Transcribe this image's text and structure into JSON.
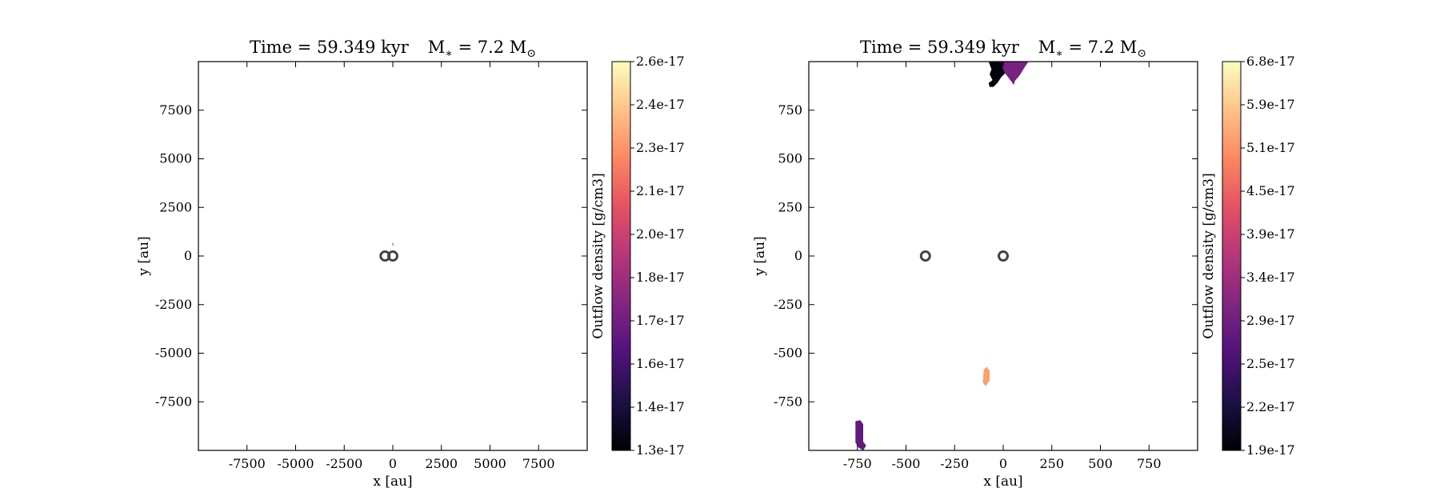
{
  "colormap": {
    "name": "magma",
    "stops": [
      "#000004",
      "#1c1044",
      "#4f127b",
      "#812581",
      "#b5367a",
      "#e55064",
      "#fb8761",
      "#fec287",
      "#fcfdbf"
    ]
  },
  "chart_data": [
    {
      "type": "heatmap",
      "title_time": "Time = 59.349 kyr",
      "title_mass_symbol": "M",
      "title_mass_sub": "∗",
      "title_mass_value": " = 7.2 M",
      "title_mass_unit_sub": "⊙",
      "xlabel": "x [au]",
      "ylabel": "y [au]",
      "xlim": [
        -10000,
        10000
      ],
      "ylim": [
        -10000,
        10000
      ],
      "xticks": [
        -7500,
        -5000,
        -2500,
        0,
        2500,
        5000,
        7500
      ],
      "yticks": [
        -7500,
        -5000,
        -2500,
        0,
        2500,
        5000,
        7500
      ],
      "colorbar": {
        "label": "Outflow density [g/cm3]",
        "ticks": [
          "1.3e-17",
          "1.4e-17",
          "1.6e-17",
          "1.7e-17",
          "1.8e-17",
          "2.0e-17",
          "2.1e-17",
          "2.3e-17",
          "2.4e-17",
          "2.6e-17"
        ]
      },
      "sinks": [
        {
          "x": -400,
          "y": 0
        },
        {
          "x": 0,
          "y": 0
        }
      ],
      "outflow_regions": [
        {
          "points": [
            [
              -40,
              700
            ],
            [
              30,
              620
            ],
            [
              50,
              540
            ],
            [
              -20,
              560
            ]
          ],
          "level": 0.6
        }
      ]
    },
    {
      "type": "heatmap",
      "title_time": "Time = 59.349 kyr",
      "title_mass_symbol": "M",
      "title_mass_sub": "∗",
      "title_mass_value": " = 7.2 M",
      "title_mass_unit_sub": "⊙",
      "xlabel": "x [au]",
      "ylabel": "y [au]",
      "xlim": [
        -1000,
        1000
      ],
      "ylim": [
        -1000,
        1000
      ],
      "xticks": [
        -750,
        -500,
        -250,
        0,
        250,
        500,
        750
      ],
      "yticks": [
        -750,
        -500,
        -250,
        0,
        250,
        500,
        750
      ],
      "colorbar": {
        "label": "Outflow density [g/cm3]",
        "ticks": [
          "1.9e-17",
          "2.2e-17",
          "2.5e-17",
          "2.9e-17",
          "3.4e-17",
          "3.9e-17",
          "4.5e-17",
          "5.1e-17",
          "5.9e-17",
          "6.8e-17"
        ]
      },
      "sinks": [
        {
          "x": -400,
          "y": 0
        },
        {
          "x": 0,
          "y": 0
        }
      ],
      "outflow_regions": [
        {
          "points": [
            [
              -75,
              1000
            ],
            [
              -60,
              960
            ],
            [
              -70,
              935
            ],
            [
              -55,
              905
            ],
            [
              -75,
              890
            ],
            [
              -70,
              870
            ],
            [
              -50,
              870
            ],
            [
              -30,
              890
            ],
            [
              -10,
              920
            ],
            [
              10,
              940
            ],
            [
              -5,
              975
            ],
            [
              5,
              1000
            ]
          ],
          "level": 0.02
        },
        {
          "points": [
            [
              5,
              1000
            ],
            [
              -5,
              975
            ],
            [
              10,
              940
            ],
            [
              40,
              900
            ],
            [
              55,
              880
            ],
            [
              60,
              900
            ],
            [
              85,
              930
            ],
            [
              110,
              970
            ],
            [
              130,
              1000
            ]
          ],
          "level": 0.35
        },
        {
          "points": [
            [
              -100,
              -585
            ],
            [
              -85,
              -570
            ],
            [
              -70,
              -590
            ],
            [
              -70,
              -640
            ],
            [
              -90,
              -670
            ],
            [
              -105,
              -650
            ]
          ],
          "level": 0.8
        },
        {
          "points": [
            [
              -760,
              -850
            ],
            [
              -735,
              -845
            ],
            [
              -720,
              -865
            ],
            [
              -720,
              -955
            ],
            [
              -705,
              -975
            ],
            [
              -720,
              -1000
            ],
            [
              -745,
              -985
            ],
            [
              -760,
              -960
            ]
          ],
          "level": 0.3
        }
      ]
    }
  ]
}
